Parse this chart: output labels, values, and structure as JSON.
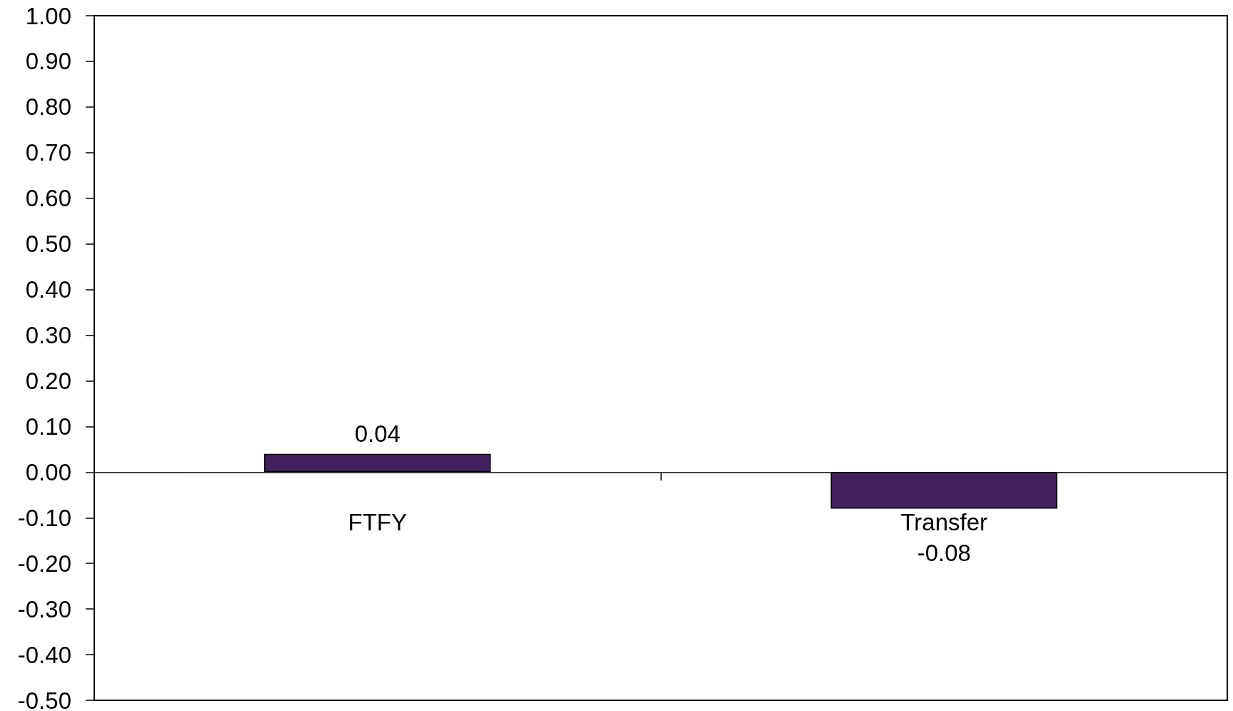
{
  "chart_data": {
    "type": "bar",
    "categories": [
      "FTFY",
      "Transfer"
    ],
    "values": [
      0.04,
      -0.08
    ],
    "color": "#42215f",
    "data_labels": true,
    "ylim": [
      -0.5,
      1.0
    ],
    "yticks": [
      {
        "value": -0.5,
        "label": "-0.50"
      },
      {
        "value": -0.4,
        "label": "-0.40"
      },
      {
        "value": -0.3,
        "label": "-0.30"
      },
      {
        "value": -0.2,
        "label": "-0.20"
      },
      {
        "value": -0.1,
        "label": "-0.10"
      },
      {
        "value": 0,
        "label": "0.00"
      },
      {
        "value": 0.1,
        "label": "0.10"
      },
      {
        "value": 0.2,
        "label": "0.20"
      },
      {
        "value": 0.3,
        "label": "0.30"
      },
      {
        "value": 0.4,
        "label": "0.40"
      },
      {
        "value": 0.5,
        "label": "0.50"
      },
      {
        "value": 0.6,
        "label": "0.60"
      },
      {
        "value": 0.7,
        "label": "0.70"
      },
      {
        "value": 0.8,
        "label": "0.80"
      },
      {
        "value": 0.9,
        "label": "0.90"
      },
      {
        "value": 1.0,
        "label": "1.00"
      }
    ]
  }
}
